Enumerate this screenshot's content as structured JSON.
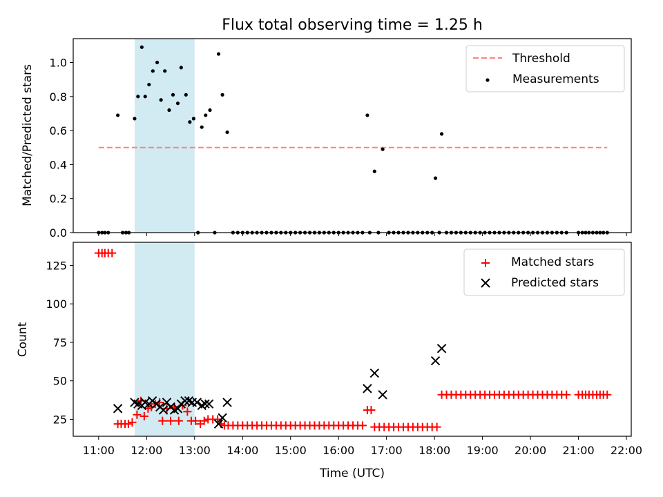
{
  "chart_data": {
    "title": "Flux total observing time = 1.25 h",
    "xlabel": "Time (UTC)",
    "xlim": [
      10.47,
      22.1
    ],
    "x_ticks": [
      11,
      12,
      13,
      14,
      15,
      16,
      17,
      18,
      19,
      20,
      21,
      22
    ],
    "x_tick_labels": [
      "11:00",
      "12:00",
      "13:00",
      "14:00",
      "15:00",
      "16:00",
      "17:00",
      "18:00",
      "19:00",
      "20:00",
      "21:00",
      "22:00"
    ],
    "shaded_interval": {
      "x": [
        11.75,
        13.0
      ],
      "color": "#add8e6"
    },
    "panels": [
      {
        "type": "scatter",
        "ylabel": "Matched/Predicted stars",
        "ylim": [
          0,
          1.14
        ],
        "y_ticks": [
          0.0,
          0.2,
          0.4,
          0.6,
          0.8,
          1.0
        ],
        "y_tick_labels": [
          "0.0",
          "0.2",
          "0.4",
          "0.6",
          "0.8",
          "1.0"
        ],
        "legend": "top-right",
        "threshold": {
          "name": "Threshold",
          "y": 0.5,
          "x": [
            11.0,
            21.6
          ],
          "color": "#ff8080"
        },
        "measurements": {
          "name": "Measurements",
          "color": "#000000",
          "points": [
            [
              11.0,
              0
            ],
            [
              11.07,
              0
            ],
            [
              11.13,
              0
            ],
            [
              11.2,
              0
            ],
            [
              11.4,
              0.69
            ],
            [
              11.5,
              0
            ],
            [
              11.57,
              0
            ],
            [
              11.63,
              0
            ],
            [
              11.75,
              0.67
            ],
            [
              11.82,
              0.8
            ],
            [
              11.9,
              1.09
            ],
            [
              11.97,
              0.8
            ],
            [
              12.05,
              0.87
            ],
            [
              12.13,
              0.95
            ],
            [
              12.22,
              1.0
            ],
            [
              12.3,
              0.78
            ],
            [
              12.38,
              0.95
            ],
            [
              12.47,
              0.72
            ],
            [
              12.55,
              0.81
            ],
            [
              12.65,
              0.76
            ],
            [
              12.72,
              0.97
            ],
            [
              12.82,
              0.81
            ],
            [
              12.9,
              0.65
            ],
            [
              12.98,
              0.67
            ],
            [
              13.07,
              0
            ],
            [
              13.15,
              0.62
            ],
            [
              13.23,
              0.69
            ],
            [
              13.32,
              0.72
            ],
            [
              13.42,
              0
            ],
            [
              13.5,
              1.05
            ],
            [
              13.58,
              0.81
            ],
            [
              13.68,
              0.59
            ],
            [
              13.8,
              0
            ],
            [
              13.9,
              0
            ],
            [
              14.0,
              0
            ],
            [
              14.1,
              0
            ],
            [
              14.2,
              0
            ],
            [
              14.3,
              0
            ],
            [
              14.4,
              0
            ],
            [
              14.5,
              0
            ],
            [
              14.6,
              0
            ],
            [
              14.7,
              0
            ],
            [
              14.8,
              0
            ],
            [
              14.9,
              0
            ],
            [
              15.0,
              0
            ],
            [
              15.1,
              0
            ],
            [
              15.2,
              0
            ],
            [
              15.3,
              0
            ],
            [
              15.4,
              0
            ],
            [
              15.5,
              0
            ],
            [
              15.6,
              0
            ],
            [
              15.7,
              0
            ],
            [
              15.8,
              0
            ],
            [
              15.9,
              0
            ],
            [
              16.0,
              0
            ],
            [
              16.1,
              0
            ],
            [
              16.2,
              0
            ],
            [
              16.3,
              0
            ],
            [
              16.4,
              0
            ],
            [
              16.5,
              0
            ],
            [
              16.6,
              0.69
            ],
            [
              16.65,
              0
            ],
            [
              16.75,
              0.36
            ],
            [
              16.83,
              0
            ],
            [
              16.92,
              0.49
            ],
            [
              17.05,
              0
            ],
            [
              17.15,
              0
            ],
            [
              17.25,
              0
            ],
            [
              17.35,
              0
            ],
            [
              17.45,
              0
            ],
            [
              17.55,
              0
            ],
            [
              17.65,
              0
            ],
            [
              17.75,
              0
            ],
            [
              17.85,
              0
            ],
            [
              17.95,
              0
            ],
            [
              18.02,
              0.32
            ],
            [
              18.1,
              0
            ],
            [
              18.15,
              0.58
            ],
            [
              18.25,
              0
            ],
            [
              18.35,
              0
            ],
            [
              18.45,
              0
            ],
            [
              18.55,
              0
            ],
            [
              18.65,
              0
            ],
            [
              18.75,
              0
            ],
            [
              18.85,
              0
            ],
            [
              18.95,
              0
            ],
            [
              19.05,
              0
            ],
            [
              19.15,
              0
            ],
            [
              19.25,
              0
            ],
            [
              19.35,
              0
            ],
            [
              19.45,
              0
            ],
            [
              19.55,
              0
            ],
            [
              19.65,
              0
            ],
            [
              19.75,
              0
            ],
            [
              19.85,
              0
            ],
            [
              19.95,
              0
            ],
            [
              20.05,
              0
            ],
            [
              20.15,
              0
            ],
            [
              20.25,
              0
            ],
            [
              20.35,
              0
            ],
            [
              20.45,
              0
            ],
            [
              20.55,
              0
            ],
            [
              20.65,
              0
            ],
            [
              20.75,
              0
            ],
            [
              21.0,
              0
            ],
            [
              21.08,
              0
            ],
            [
              21.15,
              0
            ],
            [
              21.22,
              0
            ],
            [
              21.3,
              0
            ],
            [
              21.38,
              0
            ],
            [
              21.45,
              0
            ],
            [
              21.52,
              0
            ],
            [
              21.6,
              0
            ]
          ]
        }
      },
      {
        "type": "scatter",
        "ylabel": "Count",
        "ylim": [
          14,
          140
        ],
        "y_ticks": [
          25,
          50,
          75,
          100,
          125
        ],
        "y_tick_labels": [
          "25",
          "50",
          "75",
          "100",
          "125"
        ],
        "legend": "top-right",
        "matched": {
          "name": "Matched stars",
          "color": "#ff0000",
          "points": [
            [
              11.0,
              133
            ],
            [
              11.07,
              133
            ],
            [
              11.13,
              133
            ],
            [
              11.2,
              133
            ],
            [
              11.28,
              133
            ],
            [
              11.4,
              22
            ],
            [
              11.47,
              22
            ],
            [
              11.55,
              22
            ],
            [
              11.62,
              22
            ],
            [
              11.7,
              23
            ],
            [
              11.8,
              28
            ],
            [
              11.88,
              37
            ],
            [
              11.95,
              27
            ],
            [
              12.03,
              32
            ],
            [
              12.1,
              33
            ],
            [
              12.18,
              35
            ],
            [
              12.27,
              36
            ],
            [
              12.33,
              24
            ],
            [
              12.42,
              32
            ],
            [
              12.5,
              24
            ],
            [
              12.58,
              33
            ],
            [
              12.67,
              24
            ],
            [
              12.75,
              34
            ],
            [
              12.85,
              30
            ],
            [
              12.93,
              24
            ],
            [
              13.02,
              24
            ],
            [
              13.12,
              22
            ],
            [
              13.2,
              24
            ],
            [
              13.28,
              25
            ],
            [
              13.38,
              25
            ],
            [
              13.48,
              25
            ],
            [
              13.55,
              22
            ],
            [
              13.62,
              21
            ],
            [
              13.7,
              21
            ],
            [
              13.8,
              21
            ],
            [
              13.9,
              21
            ],
            [
              14.0,
              21
            ],
            [
              14.1,
              21
            ],
            [
              14.2,
              21
            ],
            [
              14.3,
              21
            ],
            [
              14.4,
              21
            ],
            [
              14.5,
              21
            ],
            [
              14.6,
              21
            ],
            [
              14.7,
              21
            ],
            [
              14.8,
              21
            ],
            [
              14.9,
              21
            ],
            [
              15.0,
              21
            ],
            [
              15.1,
              21
            ],
            [
              15.2,
              21
            ],
            [
              15.3,
              21
            ],
            [
              15.4,
              21
            ],
            [
              15.5,
              21
            ],
            [
              15.6,
              21
            ],
            [
              15.7,
              21
            ],
            [
              15.8,
              21
            ],
            [
              15.9,
              21
            ],
            [
              16.0,
              21
            ],
            [
              16.1,
              21
            ],
            [
              16.2,
              21
            ],
            [
              16.3,
              21
            ],
            [
              16.4,
              21
            ],
            [
              16.5,
              21
            ],
            [
              16.6,
              31
            ],
            [
              16.68,
              31
            ],
            [
              16.75,
              20
            ],
            [
              16.85,
              20
            ],
            [
              16.95,
              20
            ],
            [
              17.05,
              20
            ],
            [
              17.15,
              20
            ],
            [
              17.25,
              20
            ],
            [
              17.35,
              20
            ],
            [
              17.45,
              20
            ],
            [
              17.55,
              20
            ],
            [
              17.65,
              20
            ],
            [
              17.75,
              20
            ],
            [
              17.85,
              20
            ],
            [
              17.95,
              20
            ],
            [
              18.05,
              20
            ],
            [
              18.15,
              41
            ],
            [
              18.25,
              41
            ],
            [
              18.35,
              41
            ],
            [
              18.45,
              41
            ],
            [
              18.55,
              41
            ],
            [
              18.65,
              41
            ],
            [
              18.75,
              41
            ],
            [
              18.85,
              41
            ],
            [
              18.95,
              41
            ],
            [
              19.05,
              41
            ],
            [
              19.15,
              41
            ],
            [
              19.25,
              41
            ],
            [
              19.35,
              41
            ],
            [
              19.45,
              41
            ],
            [
              19.55,
              41
            ],
            [
              19.65,
              41
            ],
            [
              19.75,
              41
            ],
            [
              19.85,
              41
            ],
            [
              19.95,
              41
            ],
            [
              20.05,
              41
            ],
            [
              20.15,
              41
            ],
            [
              20.25,
              41
            ],
            [
              20.35,
              41
            ],
            [
              20.45,
              41
            ],
            [
              20.55,
              41
            ],
            [
              20.65,
              41
            ],
            [
              20.75,
              41
            ],
            [
              21.0,
              41
            ],
            [
              21.08,
              41
            ],
            [
              21.15,
              41
            ],
            [
              21.22,
              41
            ],
            [
              21.3,
              41
            ],
            [
              21.38,
              41
            ],
            [
              21.45,
              41
            ],
            [
              21.52,
              41
            ],
            [
              21.6,
              41
            ]
          ]
        },
        "predicted": {
          "name": "Predicted stars",
          "color": "#000000",
          "points": [
            [
              11.4,
              32
            ],
            [
              11.75,
              36
            ],
            [
              11.82,
              35
            ],
            [
              11.9,
              34
            ],
            [
              11.97,
              36
            ],
            [
              12.05,
              35
            ],
            [
              12.12,
              37
            ],
            [
              12.2,
              35
            ],
            [
              12.28,
              33
            ],
            [
              12.35,
              31
            ],
            [
              12.42,
              36
            ],
            [
              12.5,
              33
            ],
            [
              12.58,
              31
            ],
            [
              12.65,
              32
            ],
            [
              12.72,
              35
            ],
            [
              12.8,
              37
            ],
            [
              12.88,
              37
            ],
            [
              12.95,
              36
            ],
            [
              13.05,
              36
            ],
            [
              13.15,
              34
            ],
            [
              13.22,
              35
            ],
            [
              13.3,
              35
            ],
            [
              13.5,
              22
            ],
            [
              13.58,
              26
            ],
            [
              13.68,
              36
            ],
            [
              16.6,
              45
            ],
            [
              16.75,
              55
            ],
            [
              16.92,
              41
            ],
            [
              18.02,
              63
            ],
            [
              18.15,
              71
            ]
          ]
        }
      }
    ]
  }
}
